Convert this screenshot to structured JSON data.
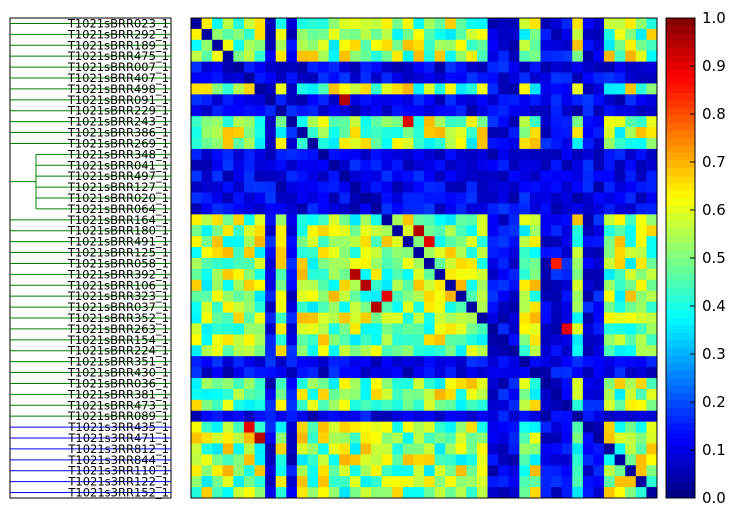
{
  "chart_data": {
    "type": "heatmap",
    "title": "",
    "xlabel": "",
    "ylabel": "",
    "row_labels": [
      "T1021sBRR023_1",
      "T1021sBRR292_1",
      "T1021sBRR189_1",
      "T1021sBRR475_1",
      "T1021sBRR007_1",
      "T1021sBRR407_1",
      "T1021sBRR498_1",
      "T1021sBRR091_1",
      "T1021sBRR229_1",
      "T1021sBRR243_1",
      "T1021sBRR386_1",
      "T1021sBRR269_1",
      "T1021sBRR348_1",
      "T1021sBRR041_1",
      "T1021sBRR497_1",
      "T1021sBRR127_1",
      "T1021sBRR020_1",
      "T1021sBRR064_1",
      "T1021sBRR164_1",
      "T1021sBRR180_1",
      "T1021sBRR491_1",
      "T1021sBRR125_1",
      "T1021sBRR058_1",
      "T1021sBRR392_1",
      "T1021sBRR106_1",
      "T1021sBRR323_1",
      "T1021sBRR037_1",
      "T1021sBRR352_1",
      "T1021sBRR263_1",
      "T1021sBRR154_1",
      "T1021sBRR224_1",
      "T1021sBRR351_1",
      "T1021sBRR430_1",
      "T1021sBRR036_1",
      "T1021sBRR381_1",
      "T1021sBRR473_1",
      "T1021sBRR089_1",
      "T1021s3RR435_1",
      "T1021s3RR471_1",
      "T1021s3RR812_1",
      "T1021s3RR844_1",
      "T1021s3RR110_1",
      "T1021s3RR122_1",
      "T1021s3RR152_1"
    ],
    "colorbar": {
      "colormap": "jet",
      "range": [
        0.0,
        1.0
      ],
      "ticks": [
        "0.0",
        "0.1",
        "0.2",
        "0.3",
        "0.4",
        "0.5",
        "0.6",
        "0.7",
        "0.8",
        "0.9",
        "1.0"
      ]
    },
    "dendrogram": {
      "clusters": [
        {
          "rows": [
            0,
            36
          ],
          "color": "#008000"
        },
        {
          "rows": [
            37,
            43
          ],
          "color": "#0000ff"
        }
      ],
      "inner_merge": {
        "rows": [
          12,
          17
        ],
        "color": "#008000"
      }
    },
    "matrix": {
      "size": 44,
      "low_rows": [
        4,
        5,
        7,
        8,
        12,
        13,
        14,
        15,
        16,
        17,
        31,
        32,
        36
      ],
      "low_cols": [
        7,
        9,
        28,
        29,
        30,
        33,
        34,
        35,
        37,
        38
      ],
      "highlights": [
        {
          "row": 7,
          "col": 14,
          "value": 0.95
        },
        {
          "row": 9,
          "col": 20,
          "value": 0.9
        },
        {
          "row": 19,
          "col": 21,
          "value": 0.95
        },
        {
          "row": 20,
          "col": 22,
          "value": 0.9
        },
        {
          "row": 22,
          "col": 34,
          "value": 0.85
        },
        {
          "row": 23,
          "col": 15,
          "value": 0.95
        },
        {
          "row": 24,
          "col": 16,
          "value": 0.95
        },
        {
          "row": 25,
          "col": 18,
          "value": 0.9
        },
        {
          "row": 26,
          "col": 17,
          "value": 0.95
        },
        {
          "row": 28,
          "col": 35,
          "value": 0.9
        },
        {
          "row": 37,
          "col": 5,
          "value": 0.9
        },
        {
          "row": 38,
          "col": 6,
          "value": 0.95
        }
      ]
    }
  }
}
